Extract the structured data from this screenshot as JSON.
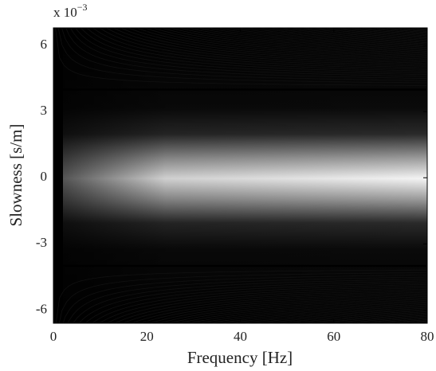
{
  "chart_data": {
    "type": "image",
    "x_label": "Frequency [Hz]",
    "y_label": "Slowness [s/m]",
    "y_scale_base": "x 10",
    "y_scale_exponent": "−3",
    "xlim": [
      0,
      80
    ],
    "xticks": [
      0,
      20,
      40,
      60,
      80
    ],
    "ylim": [
      -6.6,
      6.8
    ],
    "yticks": [
      -6,
      -3,
      0,
      3,
      6
    ],
    "hlines": [
      4,
      -4
    ],
    "colormap": "gray"
  }
}
